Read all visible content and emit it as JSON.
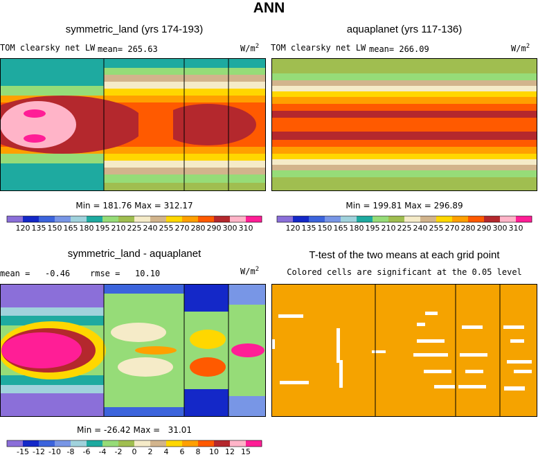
{
  "figure": {
    "title": "ANN"
  },
  "panels": {
    "symmetric_land": {
      "title": "symmetric_land (yrs 174-193)",
      "variable": "TOM clearsky net LW",
      "mean_text": "mean= 265.63",
      "units_base": "W/m",
      "units_exp": "2",
      "min_max": "Min = 181.76 Max = 312.17"
    },
    "aquaplanet": {
      "title": "aquaplanet (yrs 117-136)",
      "variable": "TOM clearsky net LW",
      "mean_text": "mean= 266.09",
      "units_base": "W/m",
      "units_exp": "2",
      "min_max": "Min = 199.81 Max = 296.89"
    },
    "difference": {
      "title": "symmetric_land - aquaplanet",
      "mean_text": "mean =   -0.46",
      "rmse_text": "rmse =   10.10",
      "units_base": "W/m",
      "units_exp": "2",
      "min_max": "Min = -26.42 Max =   31.01"
    },
    "ttest": {
      "title": "T-test of the two means at each grid point",
      "subtitle": "Colored cells are significant at the 0.05 level",
      "fill_color": "#f5a300"
    }
  },
  "colorbars": {
    "field": {
      "labels": [
        "120",
        "135",
        "150",
        "165",
        "180",
        "195",
        "210",
        "225",
        "240",
        "255",
        "270",
        "280",
        "290",
        "300",
        "310"
      ],
      "colors": [
        "#8b6fd9",
        "#1428c8",
        "#3c64dc",
        "#7896e6",
        "#a0d2dc",
        "#1eaaa0",
        "#96dc78",
        "#a0be50",
        "#f5ebc8",
        "#d2b48c",
        "#ffd700",
        "#ffa000",
        "#ff5a00",
        "#b4282d",
        "#ffb4c8",
        "#ff1e96"
      ]
    },
    "diff": {
      "labels": [
        "-15",
        "-12",
        "-10",
        "-8",
        "-6",
        "-4",
        "-2",
        "0",
        "2",
        "4",
        "6",
        "8",
        "10",
        "12",
        "15"
      ],
      "colors": [
        "#8b6fd9",
        "#1428c8",
        "#3c64dc",
        "#7896e6",
        "#a0d2dc",
        "#1eaaa0",
        "#96dc78",
        "#a0be50",
        "#f5ebc8",
        "#d2b48c",
        "#ffd700",
        "#ffa000",
        "#ff5a00",
        "#b4282d",
        "#ffb4c8",
        "#ff1e96"
      ]
    }
  }
}
